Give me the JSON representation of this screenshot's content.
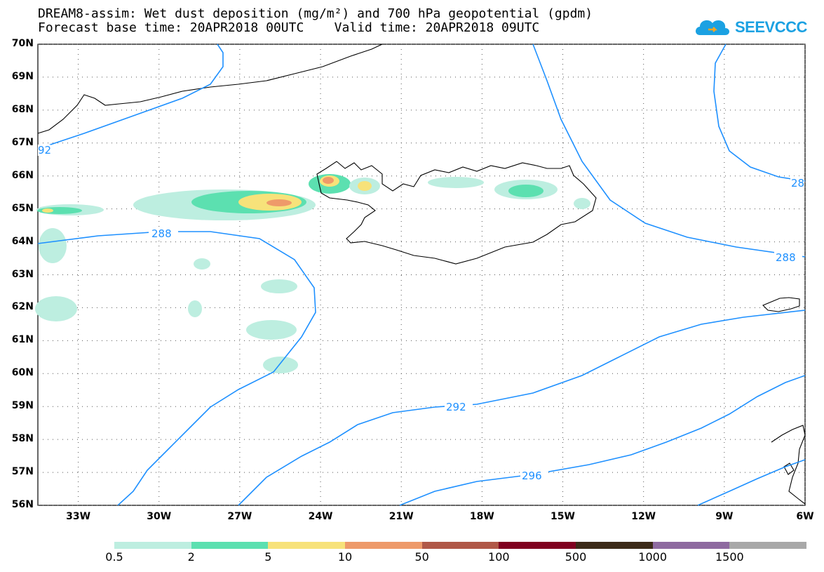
{
  "title": {
    "line1": "DREAM8-assim: Wet dust deposition (mg/m²) and 700 hPa geopotential (gpdm)",
    "line2": "Forecast base time: 20APR2018 00UTC    Valid time: 20APR2018 09UTC"
  },
  "logo": {
    "text": "SEEVCCC",
    "icon": "cloud-icon",
    "color": "#1ba1e2"
  },
  "map": {
    "lat_labels": [
      "70N",
      "69N",
      "68N",
      "67N",
      "66N",
      "65N",
      "64N",
      "63N",
      "62N",
      "61N",
      "60N",
      "59N",
      "58N",
      "57N",
      "56N"
    ],
    "lon_labels": [
      "33W",
      "30W",
      "27W",
      "24W",
      "21W",
      "18W",
      "15W",
      "12W",
      "9W",
      "6W"
    ],
    "contour_labels": [
      "292",
      "288",
      "288",
      "292",
      "296",
      "28",
      "29"
    ],
    "contour_color": "#1e90ff",
    "coastline_color": "#000000"
  },
  "colorbar": {
    "labels": [
      "0.5",
      "2",
      "5",
      "10",
      "50",
      "100",
      "500",
      "1000",
      "1500"
    ],
    "colors": [
      "#bdeee0",
      "#5ce0b0",
      "#f7e27a",
      "#ee9a6a",
      "#b05848",
      "#800020",
      "#3c2a18",
      "#8e6aa0",
      "#a8a8a8"
    ]
  }
}
